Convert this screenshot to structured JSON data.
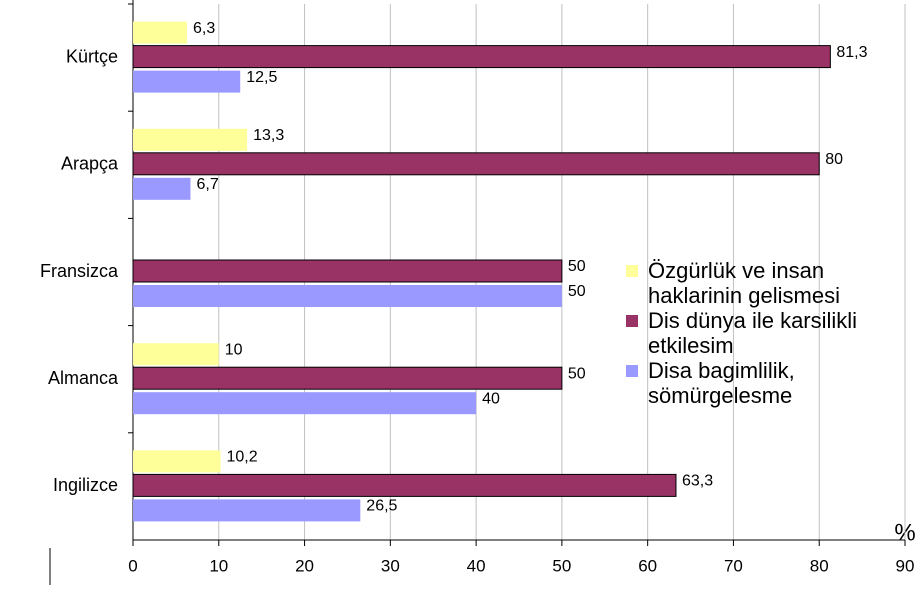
{
  "chart_data": {
    "type": "bar",
    "orientation": "horizontal",
    "categories": [
      "Kürtçe",
      "Arapça",
      "Fransizca",
      "Almanca",
      "Ingilizce"
    ],
    "series": [
      {
        "name": "Özgürlük ve insan haklarinin gelismesi",
        "color": "#ffff99",
        "values": [
          6.3,
          13.3,
          null,
          10,
          10.2
        ],
        "value_labels": [
          "6,3",
          "13,3",
          null,
          "10",
          "10,2"
        ]
      },
      {
        "name": "Dis dünya ile karsilikli etkilesim",
        "color": "#993366",
        "values": [
          81.3,
          80,
          50,
          50,
          63.3
        ],
        "value_labels": [
          "81,3",
          "80",
          "50",
          "50",
          "63,3"
        ]
      },
      {
        "name": "Disa bagimlilik, sömürgelesme",
        "color": "#9999ff",
        "values": [
          12.5,
          6.7,
          50,
          40,
          26.5
        ],
        "value_labels": [
          "12,5",
          "6,7",
          "50",
          "40",
          "26,5"
        ]
      }
    ],
    "x_label": "%",
    "xlim": [
      0,
      90
    ],
    "xticks": [
      0,
      10,
      20,
      30,
      40,
      50,
      60,
      70,
      80,
      90
    ],
    "grid": true,
    "legend": "right"
  }
}
